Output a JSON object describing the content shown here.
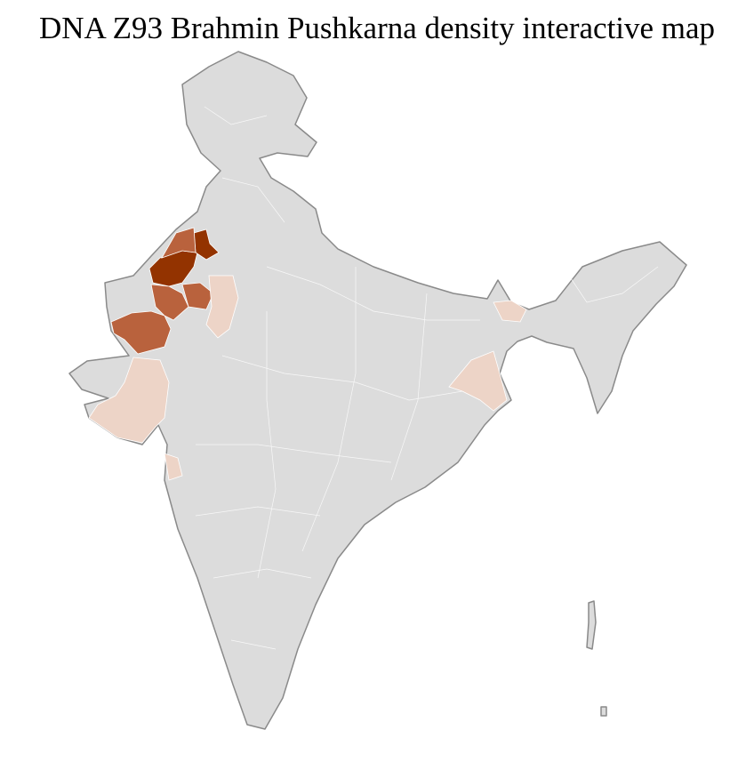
{
  "title": "DNA Z93 Brahmin Pushkarna density interactive map",
  "colors": {
    "no_data": "#dcdcdc",
    "border": "#8a8a8a",
    "high": "#933300",
    "medium": "#b9623d",
    "low": "#edd4c7"
  },
  "regions": [
    {
      "name": "Bikaner area",
      "level": "high"
    },
    {
      "name": "Ganganagar area",
      "level": "high"
    },
    {
      "name": "Jaisalmer / Barmer / Jodhpur area",
      "level": "medium"
    },
    {
      "name": "Nagaur area",
      "level": "medium"
    },
    {
      "name": "Gujarat districts",
      "level": "low"
    },
    {
      "name": "East Rajasthan districts",
      "level": "low"
    },
    {
      "name": "West Bengal districts",
      "level": "low"
    },
    {
      "name": "Sikkim / North Bengal",
      "level": "low"
    }
  ]
}
